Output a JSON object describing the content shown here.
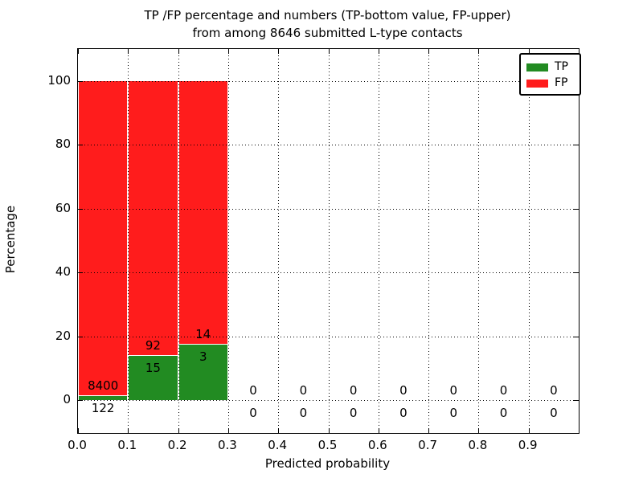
{
  "figure": {
    "title_line1": "TP /FP percentage and numbers (TP-bottom value, FP-upper)",
    "title_line2": "from among 8646 submitted L-type contacts",
    "background_color": "#ffffff"
  },
  "chart_data": {
    "type": "bar",
    "stacked": true,
    "title": "TP /FP percentage and numbers (TP-bottom value, FP-upper)\nfrom among 8646 submitted L-type contacts",
    "xlabel": "Predicted probability",
    "ylabel": "Percentage",
    "xlim": [
      0.0,
      1.0
    ],
    "ylim": [
      -10,
      110
    ],
    "grid": "dotted",
    "grid_color": "#000000",
    "x_ticks": [
      {
        "label": "0.0",
        "value": 0.0
      },
      {
        "label": "0.1",
        "value": 0.1
      },
      {
        "label": "0.2",
        "value": 0.2
      },
      {
        "label": "0.3",
        "value": 0.3
      },
      {
        "label": "0.4",
        "value": 0.4
      },
      {
        "label": "0.5",
        "value": 0.5
      },
      {
        "label": "0.6",
        "value": 0.6
      },
      {
        "label": "0.7",
        "value": 0.7
      },
      {
        "label": "0.8",
        "value": 0.8
      },
      {
        "label": "0.9",
        "value": 0.9
      }
    ],
    "y_ticks": [
      {
        "label": "0",
        "value": 0
      },
      {
        "label": "20",
        "value": 20
      },
      {
        "label": "40",
        "value": 40
      },
      {
        "label": "60",
        "value": 60
      },
      {
        "label": "80",
        "value": 80
      },
      {
        "label": "100",
        "value": 100
      }
    ],
    "bin_width": 0.1,
    "bin_centers": [
      0.05,
      0.15,
      0.25,
      0.35,
      0.45,
      0.55,
      0.65,
      0.75,
      0.85,
      0.95
    ],
    "series": [
      {
        "name": "TP",
        "color": "#228b22",
        "counts": [
          122,
          15,
          3,
          0,
          0,
          0,
          0,
          0,
          0,
          0
        ],
        "percent": [
          1.43,
          14.02,
          17.65,
          0,
          0,
          0,
          0,
          0,
          0,
          0
        ]
      },
      {
        "name": "FP",
        "color": "#ff1c1c",
        "counts": [
          8400,
          92,
          14,
          0,
          0,
          0,
          0,
          0,
          0,
          0
        ],
        "percent": [
          98.57,
          85.98,
          82.35,
          0,
          0,
          0,
          0,
          0,
          0,
          0
        ]
      }
    ],
    "label_note": "FP count shown above each bin, TP count shown below",
    "legend": {
      "position": "upper right",
      "entries": [
        {
          "label": "TP",
          "color": "#228b22"
        },
        {
          "label": "FP",
          "color": "#ff1c1c"
        }
      ]
    }
  }
}
